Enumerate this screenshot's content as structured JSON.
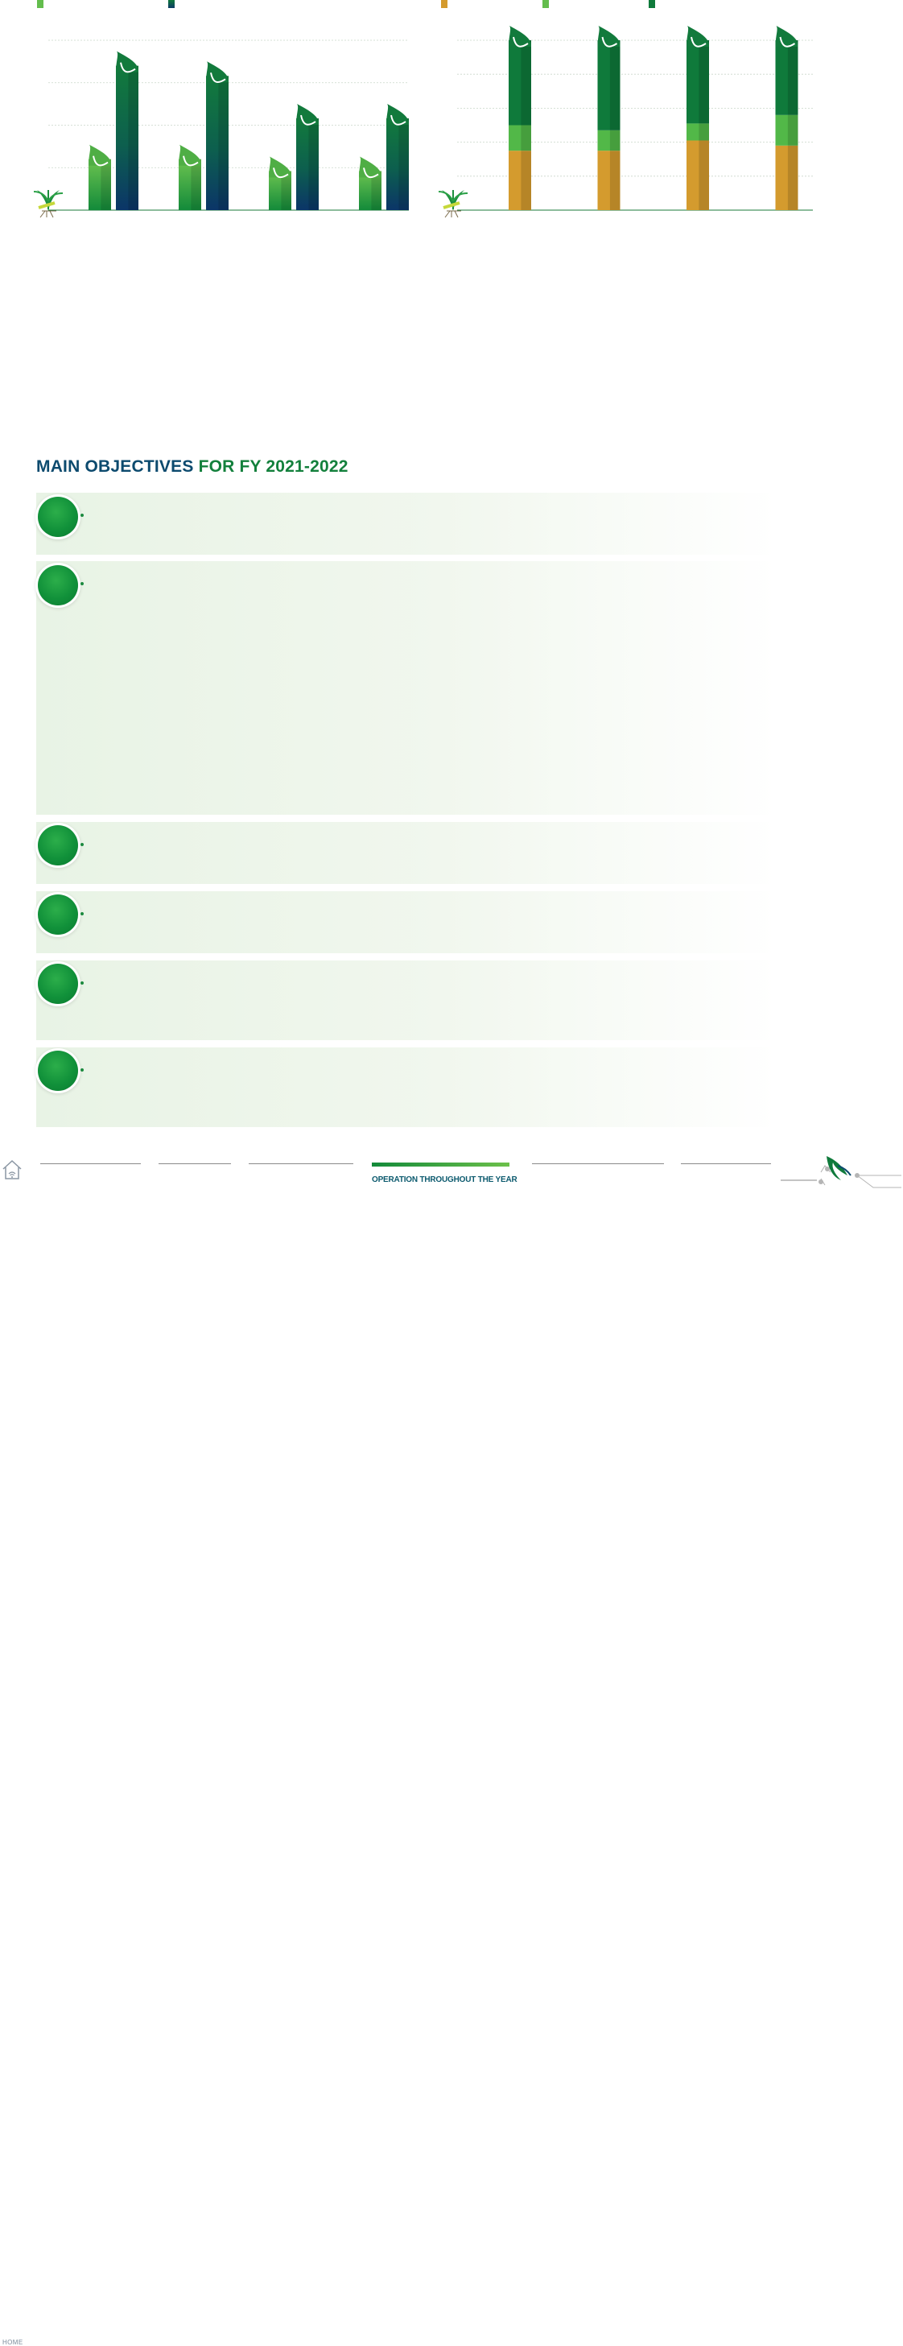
{
  "colors": {
    "green_light": "#63bd4d",
    "green_dark": "#0f7a3b",
    "navy": "#0c3a66",
    "gold": "#d49b2e",
    "title_blue": "#0c4a6e",
    "title_green": "#13803c"
  },
  "legend_left": [
    {
      "color": "#63bd4d",
      "label": ""
    },
    {
      "color": "#0c3a66",
      "label": ""
    }
  ],
  "legend_right": [
    {
      "color": "#d49b2e",
      "label": ""
    },
    {
      "color": "#63bd4d",
      "label": ""
    },
    {
      "color": "#0f7a3b",
      "label": ""
    }
  ],
  "chart_data": [
    {
      "type": "bar",
      "title": "",
      "categories": [
        "",
        "",
        "",
        ""
      ],
      "series": [
        {
          "values": [
            30,
            30,
            23,
            23
          ]
        },
        {
          "values": [
            85,
            79,
            54,
            54
          ]
        }
      ],
      "ylim": [
        0,
        100
      ],
      "grid": true
    },
    {
      "type": "bar",
      "stacked": true,
      "title": "",
      "categories": [
        "",
        "",
        "",
        ""
      ],
      "series": [
        {
          "values": [
            35,
            35,
            41,
            38
          ]
        },
        {
          "values": [
            15,
            12,
            10,
            18
          ]
        },
        {
          "values": [
            50,
            53,
            49,
            44
          ]
        }
      ],
      "ylim": [
        0,
        100
      ],
      "grid": true
    }
  ],
  "objectives": {
    "title_part1": "MAIN OBJECTIVES ",
    "title_part2": "FOR FY 2021-2022",
    "items": [
      {
        "text": ""
      },
      {
        "text": ""
      },
      {
        "text": ""
      },
      {
        "text": ""
      },
      {
        "text": ""
      },
      {
        "text": ""
      }
    ]
  },
  "footer": {
    "home_label": "HOME",
    "active_label": "OPERATION THROUGHOUT THE YEAR"
  }
}
